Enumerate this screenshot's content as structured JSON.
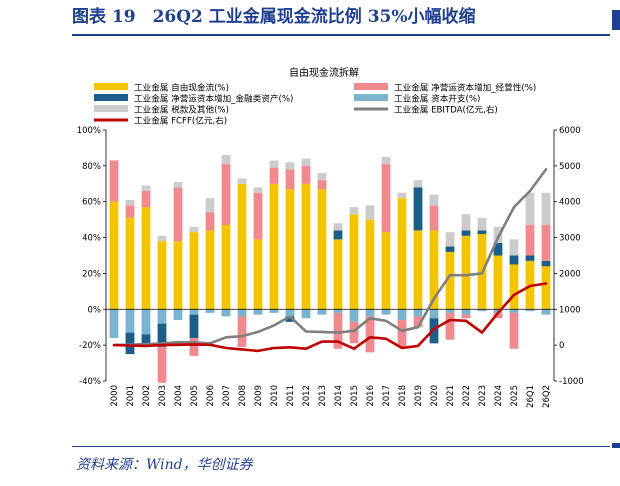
{
  "header": {
    "title": "图表 19　26Q2 工业金属现金流比例 35%小幅收缩"
  },
  "footer": {
    "source": "资料来源：Wind，华创证券"
  },
  "colors": {
    "brand": "#1f3f8f",
    "fcf_ratio": "#f5c400",
    "wc_ratio": "#f08a8f",
    "wc_fin_ratio": "#1b5e8c",
    "capex_ratio": "#7ab4cf",
    "tax_ratio": "#cccccc",
    "ebitda": "#7f7f7f",
    "fcff": "#c00000"
  },
  "chart_data": {
    "type": "bar",
    "title": "自由现金流拆解",
    "categories": [
      "2000",
      "2001",
      "2002",
      "2003",
      "2004",
      "2005",
      "2006",
      "2007",
      "2008",
      "2009",
      "2010",
      "2011",
      "2012",
      "2013",
      "2014",
      "2015",
      "2016",
      "2017",
      "2018",
      "2019",
      "2020",
      "2021",
      "2022",
      "2023",
      "2024",
      "2025",
      "26Q1",
      "26Q2"
    ],
    "y_left": {
      "ticks": [
        "100%",
        "80%",
        "60%",
        "40%",
        "20%",
        "0%",
        "-20%",
        "-40%"
      ],
      "range": [
        -40,
        100
      ]
    },
    "y_right": {
      "ticks": [
        "6000",
        "5000",
        "4000",
        "3000",
        "2000",
        "1000",
        "0",
        "-1000"
      ],
      "range": [
        -1000,
        6000
      ]
    },
    "legend_position": "top",
    "grid": false,
    "series": [
      {
        "name": "工业金属 资本开支(%)",
        "axis": "left",
        "kind": "stacked-bar",
        "values": [
          -16,
          -13,
          -14,
          -8,
          -6,
          -3,
          -2,
          -4,
          -4,
          -3,
          -2,
          -4,
          -5,
          -3,
          -2,
          -7,
          -4,
          -3,
          -6,
          -4,
          -5,
          -2,
          -3,
          -1,
          -2,
          -2,
          -1,
          -3
        ]
      },
      {
        "name": "工业金属 净营运资本增加_金融类资产(%)",
        "axis": "left",
        "kind": "stacked-bar",
        "values": [
          0,
          -12,
          -5,
          -13,
          0,
          -13,
          0,
          0,
          0,
          0,
          0,
          -3,
          0,
          0,
          5,
          0,
          0,
          0,
          0,
          24,
          -14,
          3,
          3,
          2,
          7,
          5,
          3,
          3
        ]
      },
      {
        "name": "工业金属 税款及其他(%)",
        "axis": "left",
        "kind": "stacked-bar",
        "values": [
          0,
          3,
          3,
          3,
          3,
          3,
          8,
          5,
          3,
          3,
          4,
          4,
          4,
          4,
          4,
          4,
          8,
          4,
          3,
          4,
          6,
          8,
          9,
          7,
          9,
          9,
          18,
          18
        ]
      },
      {
        "name": "工业金属 净营运资本增加_经营性(%)",
        "axis": "left",
        "kind": "stacked-bar",
        "values": [
          23,
          7,
          9,
          -20,
          30,
          -10,
          10,
          34,
          -17,
          26,
          9,
          11,
          10,
          5,
          -20,
          -12,
          -20,
          38,
          -15,
          -6,
          14,
          -15,
          -2,
          0,
          -3,
          -20,
          17,
          20
        ]
      },
      {
        "name": "工业金属 自由现金流(%)",
        "axis": "left",
        "kind": "stacked-bar",
        "values": [
          60,
          51,
          57,
          38,
          38,
          43,
          44,
          47,
          70,
          39,
          70,
          67,
          70,
          67,
          39,
          53,
          50,
          43,
          62,
          44,
          44,
          32,
          41,
          42,
          30,
          25,
          27,
          24
        ]
      },
      {
        "name": "工业金属 EBITDA(亿元,右)",
        "axis": "right",
        "kind": "line",
        "values": [
          0,
          10,
          30,
          50,
          80,
          80,
          50,
          220,
          250,
          370,
          550,
          800,
          380,
          370,
          350,
          400,
          750,
          680,
          400,
          500,
          1300,
          1950,
          1950,
          2000,
          3000,
          3850,
          4300,
          4900
        ]
      },
      {
        "name": "工业金属 FCFF(亿元,右)",
        "axis": "right",
        "kind": "line",
        "values": [
          0,
          -10,
          -20,
          0,
          10,
          20,
          10,
          -80,
          -120,
          -160,
          -80,
          -60,
          -100,
          100,
          100,
          -100,
          220,
          180,
          -80,
          -20,
          450,
          700,
          680,
          350,
          900,
          1400,
          1650,
          1720
        ]
      }
    ],
    "stack_groups": {
      "positive": [
        "工业金属 自由现金流(%)",
        "工业金属 净营运资本增加_金融类资产(%)",
        "工业金属 净营运资本增加_经营性(%)",
        "工业金属 资本开支(%)",
        "工业金属 税款及其他(%)"
      ],
      "negative": [
        "工业金属 资本开支(%)",
        "工业金属 净营运资本增加_金融类资产(%)",
        "工业金属 净营运资本增加_经营性(%)"
      ]
    }
  }
}
